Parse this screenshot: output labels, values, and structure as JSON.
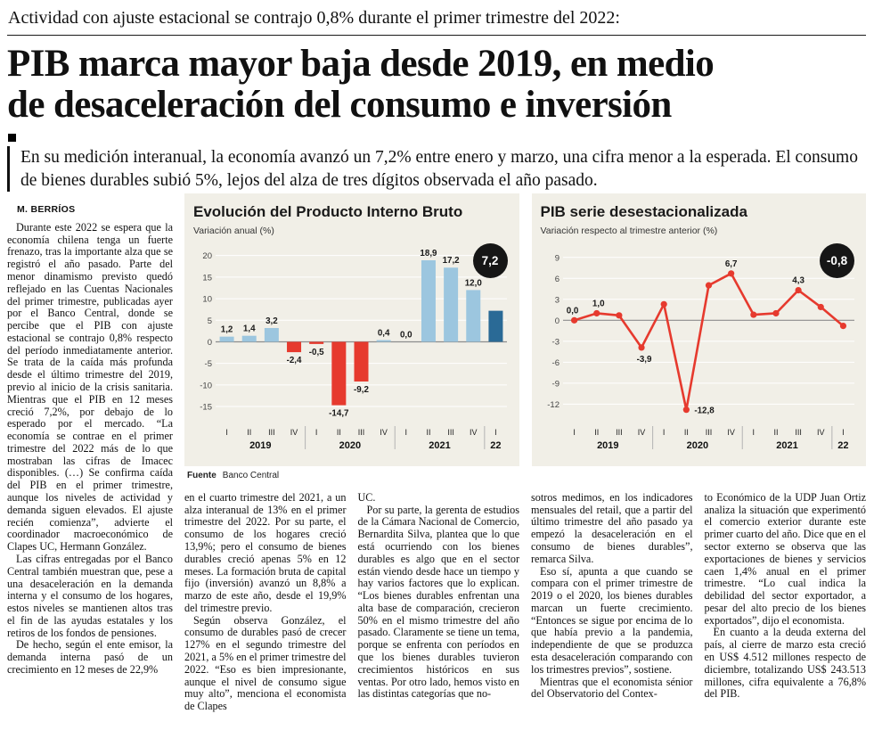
{
  "kicker": "Actividad con ajuste estacional se contrajo 0,8% durante el primer trimestre del 2022:",
  "headline_lines": [
    "PIB marca mayor baja desde 2019, en medio",
    "de desaceleración del consumo e inversión"
  ],
  "lede": "En su medición interanual, la economía avanzó un 7,2% entre enero y marzo, una cifra menor a la esperada. El consumo de bienes durables subió 5%, lejos del alza de tres dígitos observada el año pasado.",
  "byline": "M. BERRÍOS",
  "article": {
    "col1": [
      "Durante este 2022 se espera que la economía chilena tenga un fuerte frenazo, tras la importante alza que se registró el año pasado. Parte del menor dinamismo previsto quedó reflejado en las Cuentas Nacionales del primer trimestre, publicadas ayer por el Banco Central, donde se percibe que el PIB con ajuste estacional se contrajo 0,8% respecto del período inmediatamente anterior. Se trata de la caída más profunda desde el último trimestre del 2019, previo al inicio de la crisis sanitaria. Mientras que el PIB en 12 meses creció 7,2%, por debajo de lo esperado por el mercado. “La economía se contrae en el primer trimestre del 2022 más de lo que mostraban las cifras de Imacec disponibles. (…) Se confirma caída del PIB en el primer trimestre, aunque los niveles de actividad y demanda siguen elevados. El ajuste recién comienza”, advierte el coordinador macroeconómico de Clapes UC, Hermann González.",
      "Las cifras entregadas por el Banco Central también muestran que, pese a una desaceleración en la demanda interna y el consumo de los hogares, estos niveles se mantienen altos tras el fin de las ayudas estatales y los retiros de los fondos de pensiones.",
      "De hecho, según el ente emisor, la demanda interna pasó de un crecimiento en 12 meses de 22,9%"
    ],
    "col2": [
      "en el cuarto trimestre del 2021, a un alza interanual de 13% en el primer trimestre del 2022. Por su parte, el consumo de los hogares creció 13,9%; pero el consumo de bienes durables creció apenas 5% en 12 meses. La formación bruta de capital fijo (inversión) avanzó un 8,8% a marzo de este año, desde el 19,9% del trimestre previo.",
      "Según observa González, el consumo de durables pasó de crecer 127% en el segundo trimestre del 2021, a 5% en el primer trimestre del 2022. “Eso es bien impresionante, aunque el nivel de consumo sigue muy alto”, menciona el economista de Clapes"
    ],
    "col3": [
      "UC.",
      "Por su parte, la gerenta de estudios de la Cámara Nacional de Comercio, Bernardita Silva, plantea que lo que está ocurriendo con los bienes durables es algo que en el sector están viendo desde hace un tiempo y hay varios factores que lo explican. “Los bienes durables enfrentan una alta base de comparación, crecieron 50% en el mismo trimestre del año pasado. Claramente se tiene un tema, porque se enfrenta con períodos en que los bienes durables tuvieron crecimientos históricos en sus ventas. Por otro lado, hemos visto en las distintas categorías que no-"
    ],
    "col4": [
      "sotros medimos, en los indicadores mensuales del retail, que a partir del último trimestre del año pasado ya empezó la desaceleración en el consumo de bienes durables”, remarca Silva.",
      "Eso sí, apunta a que cuando se compara con el primer trimestre de 2019 o el 2020, los bienes durables marcan un fuerte crecimiento. “Entonces se sigue por encima de lo que había previo a la pandemia, independiente de que se produzca esta desaceleración comparando con los trimestres previos”, sostiene.",
      "Mientras que el economista sénior del Observatorio del Contex-"
    ],
    "col5": [
      "to Económico de la UDP Juan Ortiz analiza la situación que experimentó el comercio exterior durante este primer cuarto del año. Dice que en el sector externo se observa que las exportaciones de bienes y servicios caen 1,4% anual en el primer trimestre. “Lo cual indica la debilidad del sector exportador, a pesar del alto precio de los bienes exportados”, dijo el economista.",
      "En cuanto a la deuda externa del país, al cierre de marzo esta creció en US$ 4.512 millones respecto de diciembre, totalizando US$ 243.513 millones, cifra equivalente a 76,8% del PIB."
    ]
  },
  "charts": {
    "source_label": "Fuente",
    "source_value": "Banco Central"
  },
  "chart_data": [
    {
      "type": "bar",
      "title": "Evolución del Producto Interno Bruto",
      "subtitle": "Variación anual (%)",
      "categories": [
        "I",
        "II",
        "III",
        "IV",
        "I",
        "II",
        "III",
        "IV",
        "I",
        "II",
        "III",
        "IV",
        "I"
      ],
      "year_groups": [
        {
          "label": "2019",
          "span": 4
        },
        {
          "label": "2020",
          "span": 4
        },
        {
          "label": "2021",
          "span": 4
        },
        {
          "label": "22",
          "span": 1
        }
      ],
      "values": [
        1.2,
        1.4,
        3.2,
        -2.4,
        -0.5,
        -14.7,
        -9.2,
        0.4,
        0.0,
        18.9,
        17.2,
        12.0,
        7.2
      ],
      "labels": [
        "1,2",
        "1,4",
        "3,2",
        "-2,4",
        "-0,5",
        "-14,7",
        "-9,2",
        "0,4",
        "0,0",
        "18,9",
        "17,2",
        "12,0",
        "7,2"
      ],
      "ylim": [
        -18.5,
        22
      ],
      "yticks": [
        20,
        15,
        10,
        5,
        0,
        -5,
        -10,
        -15
      ],
      "grid": true,
      "highlight_last": true,
      "badge": "7,2",
      "colors": {
        "positive": "#9cc6df",
        "negative": "#e63a2e",
        "highlight": "#2a6a96"
      }
    },
    {
      "type": "line",
      "title": "PIB serie desestacionalizada",
      "subtitle": "Variación respecto al trimestre anterior (%)",
      "categories": [
        "I",
        "II",
        "III",
        "IV",
        "I",
        "II",
        "III",
        "IV",
        "I",
        "II",
        "III",
        "IV",
        "I"
      ],
      "year_groups": [
        {
          "label": "2019",
          "span": 4
        },
        {
          "label": "2020",
          "span": 4
        },
        {
          "label": "2021",
          "span": 4
        },
        {
          "label": "22",
          "span": 1
        }
      ],
      "values": [
        0.0,
        1.0,
        0.7,
        -3.9,
        2.3,
        -12.8,
        5.0,
        6.7,
        0.8,
        1.0,
        4.3,
        1.9,
        -0.8
      ],
      "point_labels": {
        "0": "0,0",
        "1": "1,0",
        "3": "-3,9",
        "5": "-12,8",
        "7": "6,7",
        "10": "4,3"
      },
      "label_offsets": {
        "0": [
          -2,
          -8
        ],
        "1": [
          2,
          -8
        ],
        "3": [
          3,
          16
        ],
        "5": [
          9,
          4,
          "start"
        ],
        "7": [
          0,
          -8
        ],
        "10": [
          0,
          -8
        ]
      },
      "ylim": [
        -14.5,
        10.5
      ],
      "yticks": [
        9,
        6,
        3,
        0,
        -3,
        -6,
        -9,
        -12
      ],
      "grid": true,
      "badge": "-0,8",
      "color": "#e63a2e"
    }
  ]
}
